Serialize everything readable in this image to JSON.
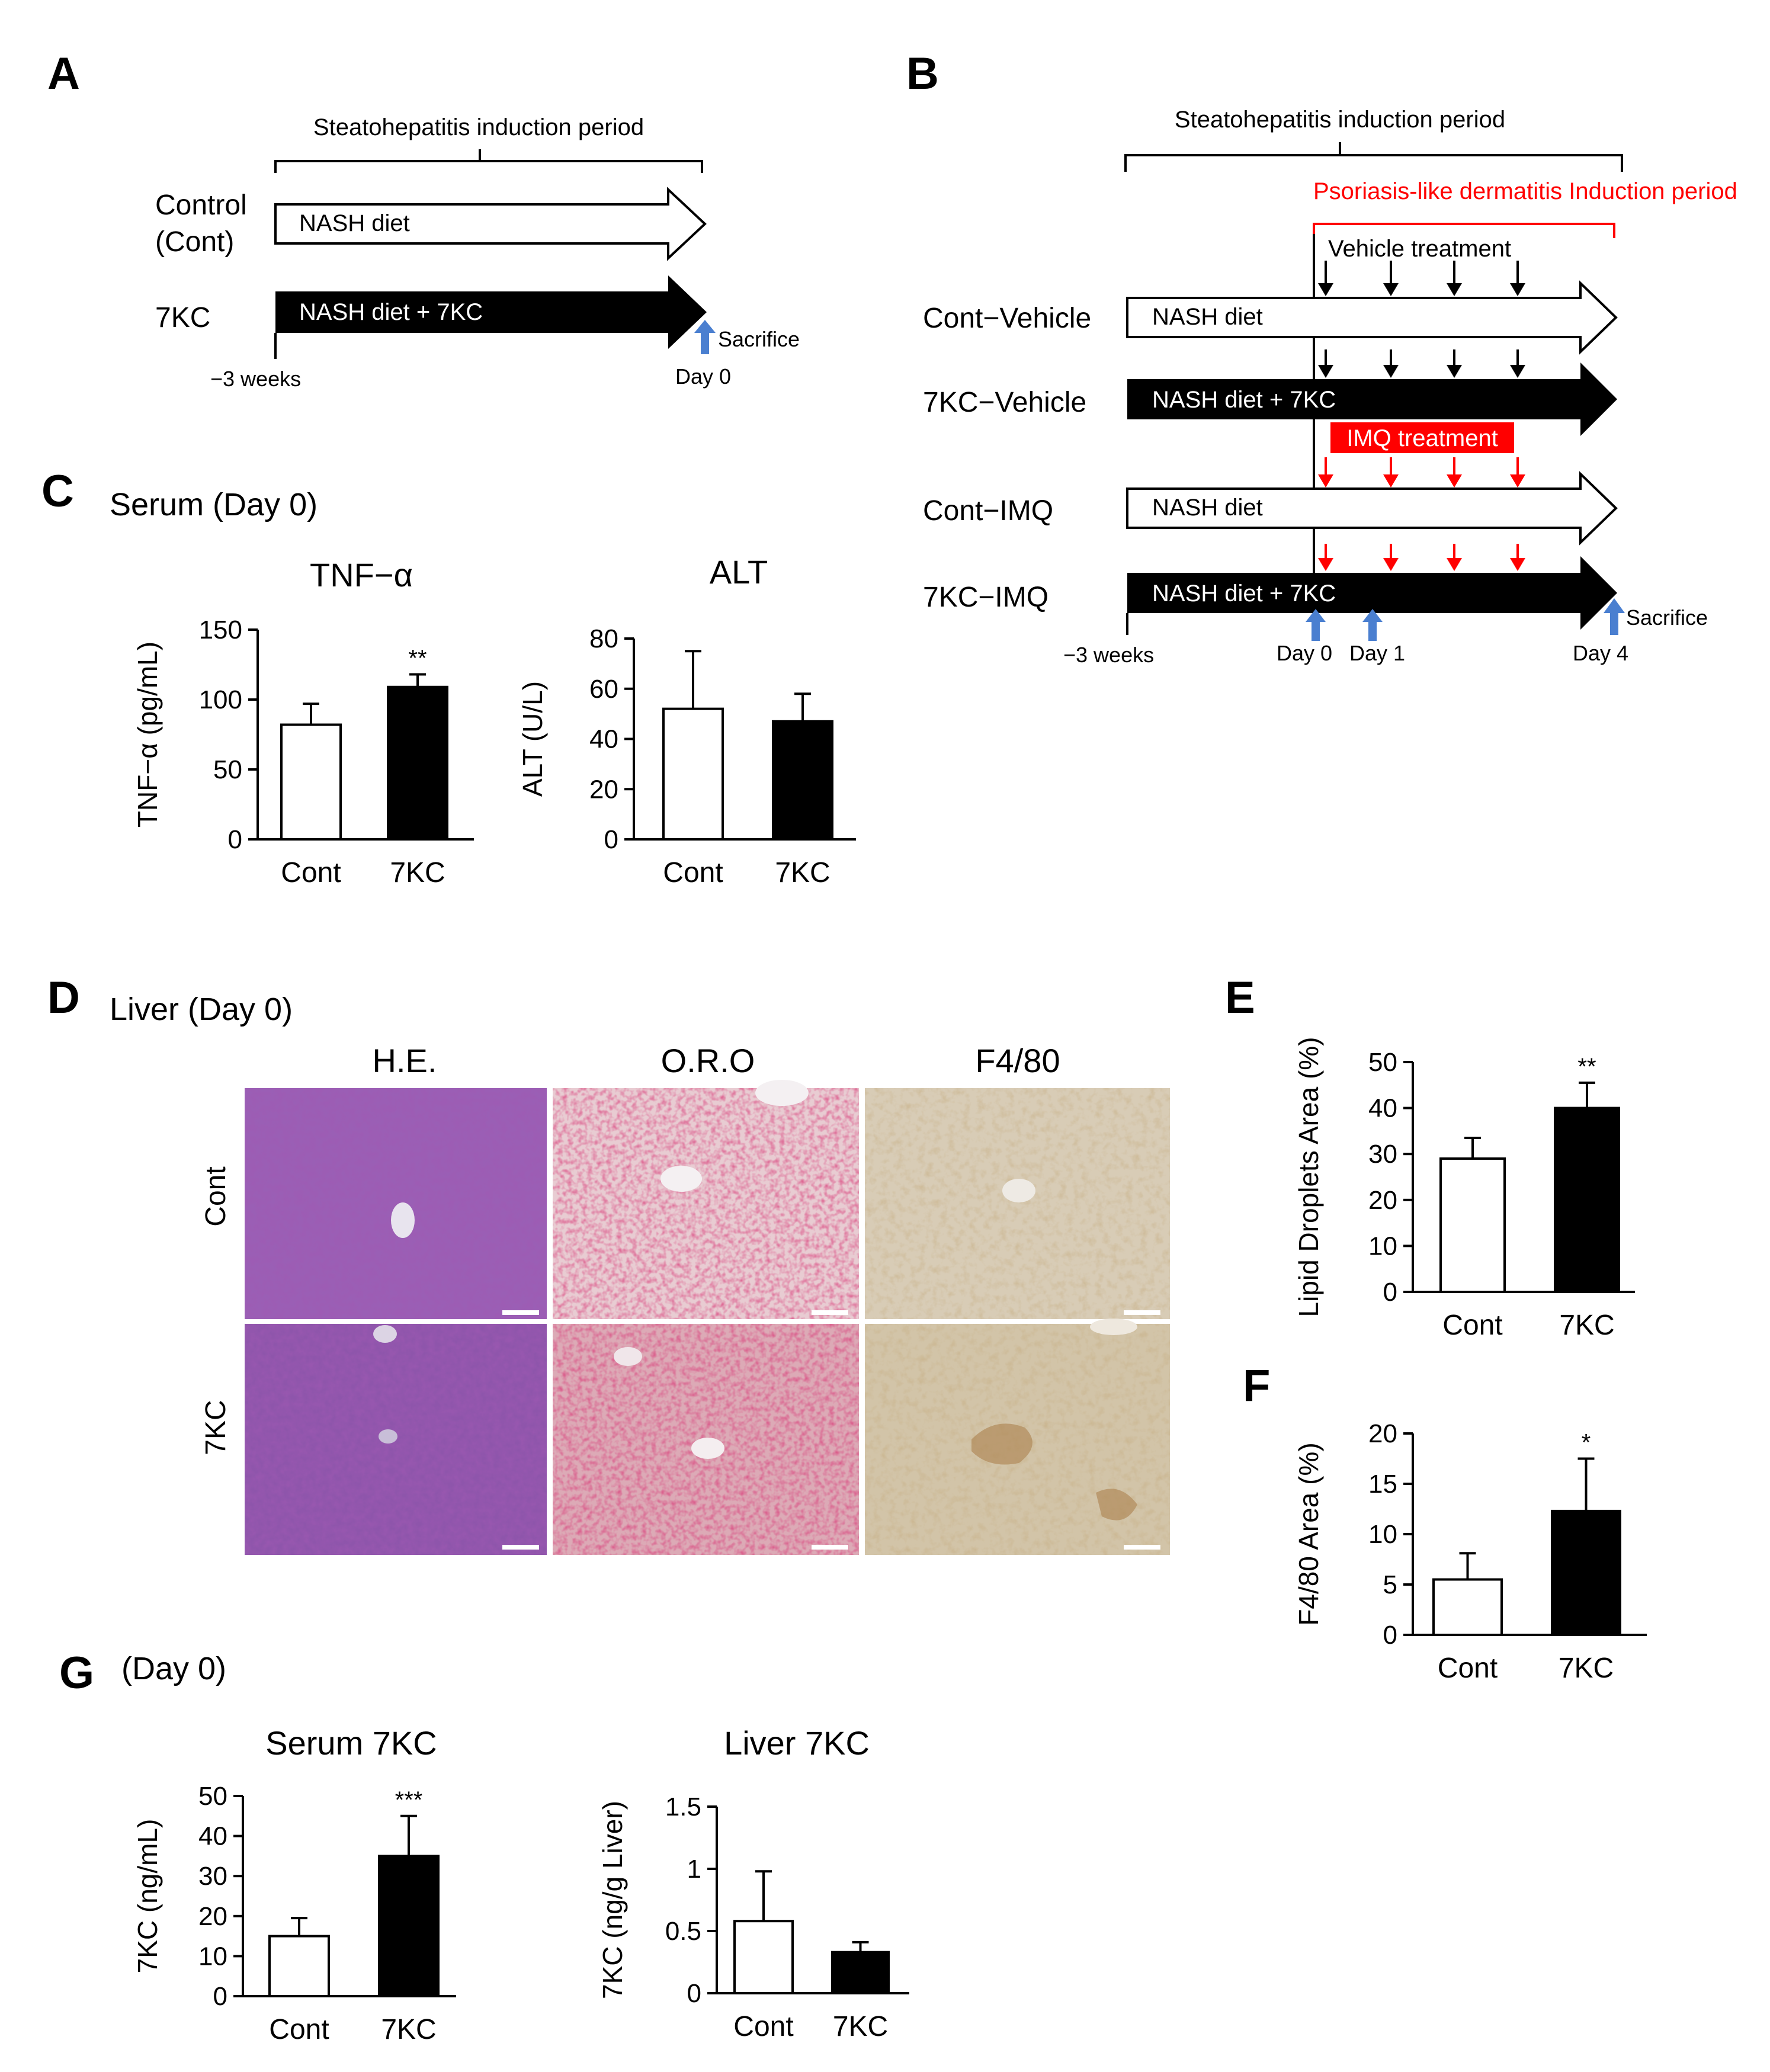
{
  "colors": {
    "control_bar": "#ffffff",
    "treated_bar": "#000000",
    "imq_red": "#ff0000",
    "day_arrow_blue": "#4a7fd0",
    "he_stain": "#8a4ea8",
    "oro_stain": "#cf9aa6",
    "f480_stain": "#cdbea2"
  },
  "panels": {
    "A": {
      "letter": "A",
      "period_label": "Steatohepatitis induction period",
      "rows": [
        {
          "name": "Control\n(Cont)",
          "line1": "Control",
          "line2": "(Cont)",
          "diet": "NASH diet"
        },
        {
          "name": "7KC",
          "diet": "NASH diet + 7KC"
        }
      ],
      "start_label": "−3 weeks",
      "end_label": "Day 0",
      "sacrifice": "Sacrifice"
    },
    "B": {
      "letter": "B",
      "period_label": "Steatohepatitis induction period",
      "psoriasis_label": "Psoriasis-like dermatitis Induction period",
      "vehicle_label": "Vehicle treatment",
      "imq_label": "IMQ treatment",
      "rows": [
        {
          "name": "Cont−Vehicle",
          "diet": "NASH diet"
        },
        {
          "name": "7KC−Vehicle",
          "diet": "NASH diet + 7KC"
        },
        {
          "name": "Cont−IMQ",
          "diet": "NASH diet"
        },
        {
          "name": "7KC−IMQ",
          "diet": "NASH diet + 7KC"
        }
      ],
      "start_label": "−3 weeks",
      "day0": "Day 0",
      "day1": "Day 1",
      "day4": "Day 4",
      "sacrifice": "Sacrifice"
    },
    "C": {
      "letter": "C",
      "heading": "Serum (Day 0)"
    },
    "D": {
      "letter": "D",
      "heading": "Liver (Day 0)",
      "columns": [
        "H.E.",
        "O.R.O",
        "F4/80"
      ],
      "rows": [
        "Cont",
        "7KC"
      ]
    },
    "E": {
      "letter": "E"
    },
    "F": {
      "letter": "F"
    },
    "G": {
      "letter": "G",
      "heading": "(Day 0)"
    }
  },
  "chart_data": [
    {
      "id": "tnf",
      "type": "bar",
      "title": "TNF−α",
      "ylabel": "TNF−α (pg/mL)",
      "categories": [
        "Cont",
        "7KC"
      ],
      "values": [
        82,
        109
      ],
      "errors": [
        15,
        9
      ],
      "significance": [
        "",
        "**"
      ],
      "ylim": [
        0,
        150
      ],
      "yticks": [
        0,
        50,
        100,
        150
      ],
      "tick_labels": [
        "0",
        "50",
        "100",
        "150"
      ]
    },
    {
      "id": "alt",
      "type": "bar",
      "title": "ALT",
      "ylabel": "ALT (U/L)",
      "categories": [
        "Cont",
        "7KC"
      ],
      "values": [
        52,
        47
      ],
      "errors": [
        23,
        11
      ],
      "significance": [
        "",
        ""
      ],
      "ylim": [
        0,
        80
      ],
      "yticks": [
        0,
        20,
        40,
        60,
        80
      ],
      "tick_labels": [
        "0",
        "20",
        "40",
        "60",
        "80"
      ]
    },
    {
      "id": "lipid",
      "type": "bar",
      "title": "",
      "ylabel": "Lipid Droplets Area (%)",
      "categories": [
        "Cont",
        "7KC"
      ],
      "values": [
        29,
        40
      ],
      "errors": [
        4.5,
        5.5
      ],
      "significance": [
        "",
        "**"
      ],
      "ylim": [
        0,
        50
      ],
      "yticks": [
        0,
        10,
        20,
        30,
        40,
        50
      ],
      "tick_labels": [
        "0",
        "10",
        "20",
        "30",
        "40",
        "50"
      ]
    },
    {
      "id": "f480",
      "type": "bar",
      "title": "",
      "ylabel": "F4/80 Area (%)",
      "categories": [
        "Cont",
        "7KC"
      ],
      "values": [
        5.5,
        12.3
      ],
      "errors": [
        2.6,
        5.2
      ],
      "significance": [
        "",
        "*"
      ],
      "ylim": [
        0,
        20
      ],
      "yticks": [
        0,
        5,
        10,
        15,
        20
      ],
      "tick_labels": [
        "0",
        "5",
        "10",
        "15",
        "20"
      ]
    },
    {
      "id": "serum7kc",
      "type": "bar",
      "title": "Serum 7KC",
      "ylabel": "7KC (ng/mL)",
      "categories": [
        "Cont",
        "7KC"
      ],
      "values": [
        15,
        35
      ],
      "errors": [
        4.5,
        10
      ],
      "significance": [
        "",
        "***"
      ],
      "ylim": [
        0,
        50
      ],
      "yticks": [
        0,
        10,
        20,
        30,
        40,
        50
      ],
      "tick_labels": [
        "0",
        "10",
        "20",
        "30",
        "40",
        "50"
      ]
    },
    {
      "id": "liver7kc",
      "type": "bar",
      "title": "Liver 7KC",
      "ylabel": "7KC (ng/g Liver)",
      "categories": [
        "Cont",
        "7KC"
      ],
      "values": [
        0.58,
        0.33
      ],
      "errors": [
        0.4,
        0.08
      ],
      "significance": [
        "",
        ""
      ],
      "ylim": [
        0,
        1.5
      ],
      "yticks": [
        0,
        0.5,
        1,
        1.5
      ],
      "tick_labels": [
        "0",
        "0.5",
        "1",
        "1.5"
      ]
    }
  ]
}
